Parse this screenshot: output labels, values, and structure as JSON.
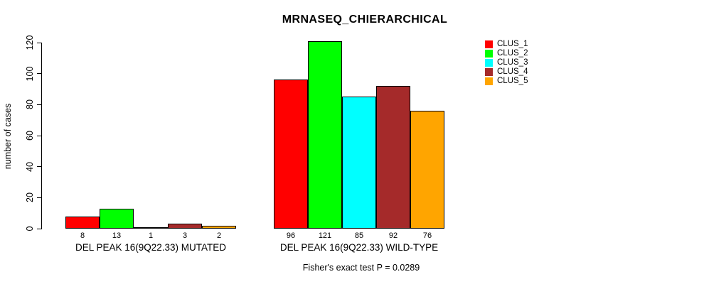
{
  "chart_data": {
    "type": "bar",
    "title": "MRNASEQ_CHIERARCHICAL",
    "xlabel": "",
    "ylabel": "number of cases",
    "ylim": [
      0,
      120
    ],
    "yticks": [
      0,
      20,
      40,
      60,
      80,
      100,
      120
    ],
    "grid": false,
    "legend_position": "top-right",
    "categories": [
      "DEL PEAK 16(9Q22.33) MUTATED",
      "DEL PEAK 16(9Q22.33) WILD-TYPE"
    ],
    "series": [
      {
        "name": "CLUS_1",
        "color": "#FF0000",
        "values": [
          8,
          96
        ]
      },
      {
        "name": "CLUS_2",
        "color": "#00FF00",
        "values": [
          13,
          121
        ]
      },
      {
        "name": "CLUS_3",
        "color": "#00FFFF",
        "values": [
          1,
          85
        ]
      },
      {
        "name": "CLUS_4",
        "color": "#A52A2A",
        "values": [
          3,
          92
        ]
      },
      {
        "name": "CLUS_5",
        "color": "#FFA500",
        "values": [
          2,
          76
        ]
      }
    ],
    "bar_value_labels_shown": true,
    "footnote": "Fisher's exact test P = 0.0289"
  }
}
